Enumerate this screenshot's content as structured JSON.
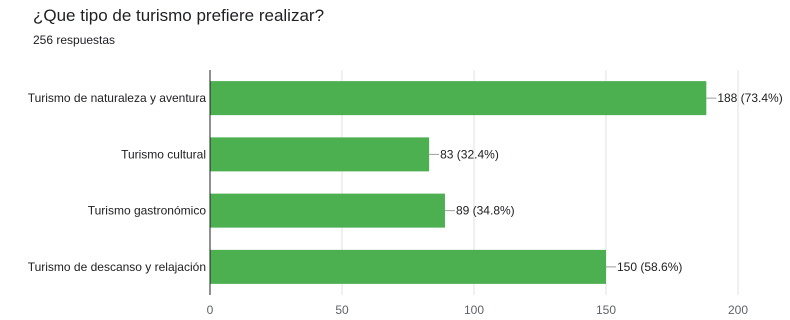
{
  "question": {
    "title": "¿Que tipo de turismo prefiere realizar?",
    "responses": "256 respuestas"
  },
  "colors": {
    "bar": "#4caf50",
    "grid": "#e0e0e0",
    "axis": "#202124",
    "connector": "#9e9e9e"
  },
  "chart_data": {
    "type": "bar",
    "orientation": "horizontal",
    "categories": [
      "Turismo de naturaleza y aventura",
      "Turismo cultural",
      "Turismo gastronómico",
      "Turismo de descanso y relajación"
    ],
    "values": [
      188,
      83,
      89,
      150
    ],
    "value_labels": [
      "188 (73.4%)",
      "83 (32.4%)",
      "89 (34.8%)",
      "150 (58.6%)"
    ],
    "xlim": [
      0,
      200
    ],
    "xticks": [
      0,
      50,
      100,
      150,
      200
    ],
    "grid": true,
    "legend": "none"
  }
}
